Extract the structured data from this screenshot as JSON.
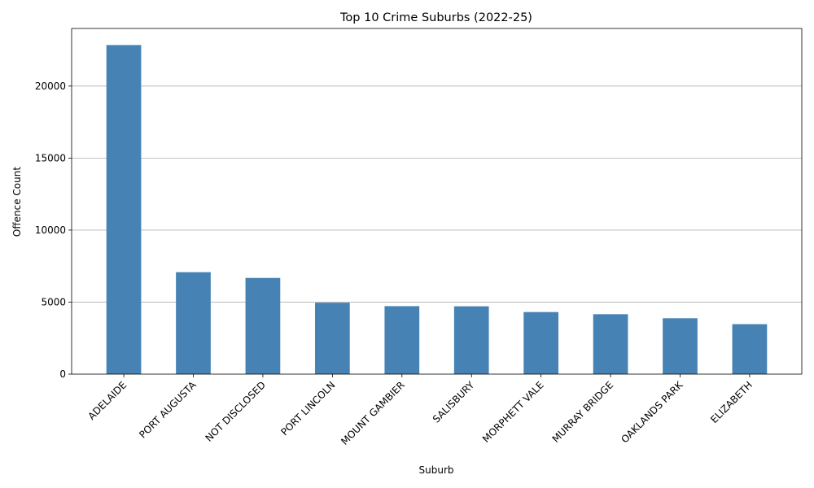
{
  "chart_data": {
    "type": "bar",
    "title": "Top 10 Crime Suburbs (2022-25)",
    "xlabel": "Suburb",
    "ylabel": "Offence Count",
    "categories": [
      "ADELAIDE",
      "PORT AUGUSTA",
      "NOT DISCLOSED",
      "PORT LINCOLN",
      "MOUNT GAMBIER",
      "SALISBURY",
      "MORPHETT VALE",
      "MURRAY BRIDGE",
      "OAKLANDS PARK",
      "ELIZABETH"
    ],
    "values": [
      22850,
      7080,
      6680,
      4960,
      4720,
      4710,
      4310,
      4160,
      3880,
      3470
    ],
    "ylim": [
      0,
      24000
    ],
    "yticks": [
      0,
      5000,
      10000,
      15000,
      20000
    ],
    "bar_color": "#4682b4",
    "grid": "y-axis only",
    "x_tick_rotation_deg": 45
  }
}
